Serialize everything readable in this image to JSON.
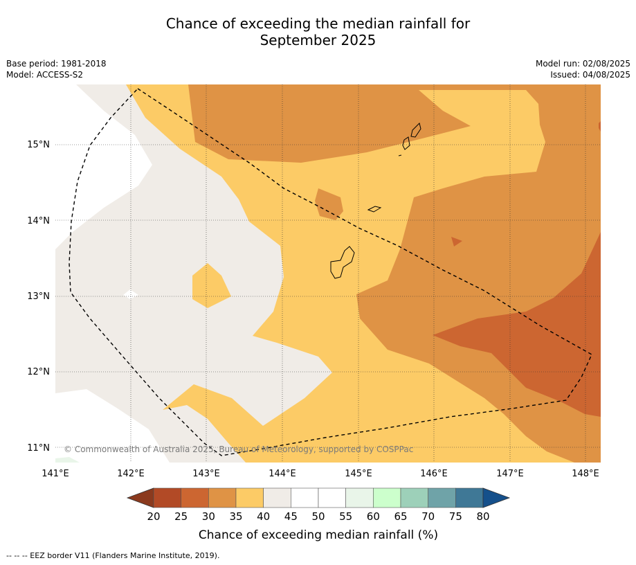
{
  "title_line1": "Chance of exceeding the median rainfall for",
  "title_line2": "September 2025",
  "meta": {
    "base_period": "Base period: 1981-2018",
    "model": "Model: ACCESS-S2",
    "model_run": "Model run: 02/08/2025",
    "issued": "Issued: 04/08/2025"
  },
  "copyright": "© Commonwealth of Australia 2025, Bureau of Meteorology, supported by COSPPac",
  "footer": "-- -- -- EEZ border V11 (Flanders Marine Institute, 2019).",
  "axes": {
    "lon_ticks": [
      "141°E",
      "142°E",
      "143°E",
      "144°E",
      "145°E",
      "146°E",
      "147°E",
      "148°E"
    ],
    "lat_ticks": [
      "15°N",
      "14°N",
      "13°N",
      "12°N",
      "11°N"
    ]
  },
  "colorbar": {
    "label": "Chance of exceeding median rainfall (%)",
    "ticks": [
      "20",
      "25",
      "30",
      "35",
      "40",
      "45",
      "50",
      "55",
      "60",
      "65",
      "70",
      "75",
      "80"
    ],
    "colors": [
      "#b24a26",
      "#cc6631",
      "#df9345",
      "#fccb66",
      "#f0ece7",
      "#ffffff",
      "#ffffff",
      "#e9f5e9",
      "#ccffcc",
      "#9dd0b9",
      "#6fa3a8",
      "#3f7896"
    ],
    "under_color": "#8b3a1e",
    "over_color": "#15508b"
  },
  "map_colors": {
    "c20_25": "#b24a26",
    "c25_30": "#cc6631",
    "c30_35": "#df9345",
    "c35_40": "#fccb66",
    "c40_45": "#f0ece7",
    "c45_55": "#ffffff",
    "c55_60": "#e9f5e9"
  }
}
